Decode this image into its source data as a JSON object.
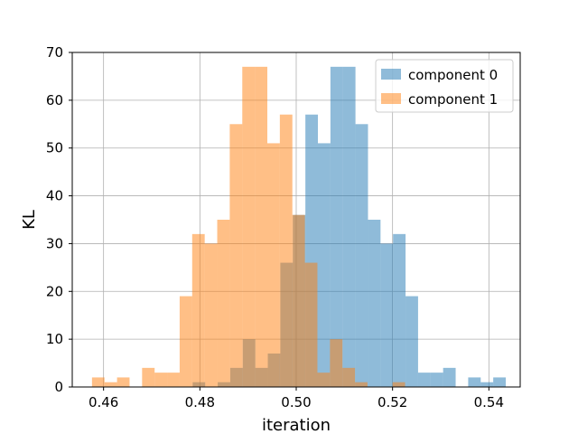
{
  "chart_data": {
    "type": "histogram",
    "xlabel": "iteration",
    "ylabel": "KL",
    "xlim": [
      0.4535,
      0.5465
    ],
    "ylim": [
      0,
      70
    ],
    "x_ticks": [
      0.46,
      0.48,
      0.5,
      0.52,
      0.54
    ],
    "x_tick_labels": [
      "0.46",
      "0.48",
      "0.50",
      "0.52",
      "0.54"
    ],
    "y_ticks": [
      0,
      10,
      20,
      30,
      40,
      50,
      60,
      70
    ],
    "y_tick_labels": [
      "0",
      "10",
      "20",
      "30",
      "40",
      "50",
      "60",
      "70"
    ],
    "grid": true,
    "legend_position": "top-right",
    "bar_alpha": 0.5,
    "series": [
      {
        "name": "component 0",
        "color": "#1f77b4",
        "bins": [
          {
            "x0": 0.4785,
            "x1": 0.4811,
            "count": 1
          },
          {
            "x0": 0.4837,
            "x1": 0.4863,
            "count": 1
          },
          {
            "x0": 0.4863,
            "x1": 0.4889,
            "count": 4
          },
          {
            "x0": 0.4889,
            "x1": 0.4915,
            "count": 10
          },
          {
            "x0": 0.4915,
            "x1": 0.4941,
            "count": 4
          },
          {
            "x0": 0.4941,
            "x1": 0.4967,
            "count": 7
          },
          {
            "x0": 0.4967,
            "x1": 0.4993,
            "count": 26
          },
          {
            "x0": 0.4993,
            "x1": 0.5019,
            "count": 36
          },
          {
            "x0": 0.5019,
            "x1": 0.5045,
            "count": 57
          },
          {
            "x0": 0.5045,
            "x1": 0.5071,
            "count": 51
          },
          {
            "x0": 0.5071,
            "x1": 0.5097,
            "count": 67
          },
          {
            "x0": 0.5097,
            "x1": 0.5123,
            "count": 67
          },
          {
            "x0": 0.5123,
            "x1": 0.5149,
            "count": 55
          },
          {
            "x0": 0.5149,
            "x1": 0.5175,
            "count": 35
          },
          {
            "x0": 0.5175,
            "x1": 0.5201,
            "count": 30
          },
          {
            "x0": 0.5201,
            "x1": 0.5227,
            "count": 32
          },
          {
            "x0": 0.5227,
            "x1": 0.5253,
            "count": 19
          },
          {
            "x0": 0.5253,
            "x1": 0.5279,
            "count": 3
          },
          {
            "x0": 0.5279,
            "x1": 0.5305,
            "count": 3
          },
          {
            "x0": 0.5305,
            "x1": 0.5331,
            "count": 4
          },
          {
            "x0": 0.5357,
            "x1": 0.5383,
            "count": 2
          },
          {
            "x0": 0.5383,
            "x1": 0.5409,
            "count": 1
          },
          {
            "x0": 0.5409,
            "x1": 0.5435,
            "count": 2
          }
        ]
      },
      {
        "name": "component 1",
        "color": "#ff7f0e",
        "bins": [
          {
            "x0": 0.4576,
            "x1": 0.4602,
            "count": 2
          },
          {
            "x0": 0.4602,
            "x1": 0.4628,
            "count": 1
          },
          {
            "x0": 0.4628,
            "x1": 0.4654,
            "count": 2
          },
          {
            "x0": 0.468,
            "x1": 0.4706,
            "count": 4
          },
          {
            "x0": 0.4706,
            "x1": 0.4732,
            "count": 3
          },
          {
            "x0": 0.4732,
            "x1": 0.4758,
            "count": 3
          },
          {
            "x0": 0.4758,
            "x1": 0.4784,
            "count": 19
          },
          {
            "x0": 0.4784,
            "x1": 0.481,
            "count": 32
          },
          {
            "x0": 0.481,
            "x1": 0.4836,
            "count": 30
          },
          {
            "x0": 0.4836,
            "x1": 0.4862,
            "count": 35
          },
          {
            "x0": 0.4862,
            "x1": 0.4888,
            "count": 55
          },
          {
            "x0": 0.4888,
            "x1": 0.4914,
            "count": 67
          },
          {
            "x0": 0.4914,
            "x1": 0.494,
            "count": 67
          },
          {
            "x0": 0.494,
            "x1": 0.4966,
            "count": 51
          },
          {
            "x0": 0.4966,
            "x1": 0.4992,
            "count": 57
          },
          {
            "x0": 0.4992,
            "x1": 0.5018,
            "count": 36
          },
          {
            "x0": 0.5018,
            "x1": 0.5044,
            "count": 26
          },
          {
            "x0": 0.5044,
            "x1": 0.507,
            "count": 3
          },
          {
            "x0": 0.507,
            "x1": 0.5096,
            "count": 10
          },
          {
            "x0": 0.5096,
            "x1": 0.5122,
            "count": 4
          },
          {
            "x0": 0.5122,
            "x1": 0.5148,
            "count": 1
          },
          {
            "x0": 0.52,
            "x1": 0.5226,
            "count": 1
          }
        ]
      }
    ]
  }
}
